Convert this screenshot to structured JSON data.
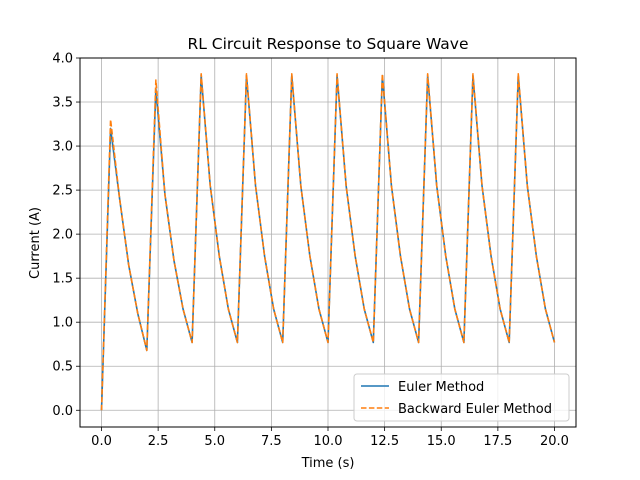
{
  "chart_data": {
    "type": "line",
    "title": "RL Circuit Response to Square Wave",
    "xlabel": "Time (s)",
    "ylabel": "Current (A)",
    "xlim": [
      -0.95,
      20.95
    ],
    "ylim": [
      -0.19,
      4.0
    ],
    "xticks": [
      0.0,
      2.5,
      5.0,
      7.5,
      10.0,
      12.5,
      15.0,
      17.5,
      20.0
    ],
    "xtick_labels": [
      "0.0",
      "2.5",
      "5.0",
      "7.5",
      "10.0",
      "12.5",
      "15.0",
      "17.5",
      "20.0"
    ],
    "yticks": [
      0.0,
      0.5,
      1.0,
      1.5,
      2.0,
      2.5,
      3.0,
      3.5,
      4.0
    ],
    "ytick_labels": [
      "0.0",
      "0.5",
      "1.0",
      "1.5",
      "2.0",
      "2.5",
      "3.0",
      "3.5",
      "4.0"
    ],
    "grid": true,
    "legend_position": "lower-right",
    "series": [
      {
        "name": "Euler Method",
        "color": "#1f77b4",
        "style": "solid",
        "x": [
          0.0,
          0.4,
          0.8,
          1.2,
          1.6,
          2.0,
          2.4,
          2.8,
          3.2,
          3.6,
          4.0,
          4.4,
          4.8,
          5.2,
          5.6,
          6.0,
          6.4,
          6.8,
          7.2,
          7.6,
          8.0,
          8.4,
          8.8,
          9.2,
          9.6,
          10.0,
          10.4,
          10.8,
          11.2,
          11.6,
          12.0,
          12.4,
          12.8,
          13.2,
          13.6,
          14.0,
          14.4,
          14.8,
          15.2,
          15.6,
          16.0,
          16.4,
          16.8,
          17.2,
          17.6,
          18.0,
          18.4,
          18.8,
          19.2,
          19.6,
          20.0
        ],
        "y": [
          0.0,
          3.2,
          2.4,
          1.65,
          1.1,
          0.68,
          3.65,
          2.45,
          1.7,
          1.15,
          0.77,
          3.8,
          2.55,
          1.75,
          1.15,
          0.77,
          3.8,
          2.55,
          1.75,
          1.15,
          0.77,
          3.8,
          2.55,
          1.75,
          1.15,
          0.77,
          3.8,
          2.55,
          1.75,
          1.15,
          0.77,
          3.8,
          2.55,
          1.75,
          1.15,
          0.77,
          3.8,
          2.55,
          1.75,
          1.15,
          0.77,
          3.8,
          2.55,
          1.75,
          1.15,
          0.77,
          3.8,
          2.55,
          1.75,
          1.15,
          0.77
        ]
      },
      {
        "name": "Backward Euler Method",
        "color": "#ff7f0e",
        "style": "dashed",
        "x": [
          0.0,
          0.4,
          0.8,
          1.2,
          1.6,
          2.0,
          2.4,
          2.8,
          3.2,
          3.6,
          4.0,
          4.4,
          4.8,
          5.2,
          5.6,
          6.0,
          6.4,
          6.8,
          7.2,
          7.6,
          8.0,
          8.4,
          8.8,
          9.2,
          9.6,
          10.0,
          10.4,
          10.8,
          11.2,
          11.6,
          12.0,
          12.4,
          12.8,
          13.2,
          13.6,
          14.0,
          14.4,
          14.8,
          15.2,
          15.6,
          16.0,
          16.4,
          16.8,
          17.2,
          17.6,
          18.0,
          18.4,
          18.8,
          19.2,
          19.6,
          20.0
        ],
        "y": [
          0.0,
          3.3,
          2.4,
          1.65,
          1.1,
          0.68,
          3.75,
          2.45,
          1.7,
          1.15,
          0.77,
          3.82,
          2.55,
          1.75,
          1.15,
          0.77,
          3.82,
          2.55,
          1.75,
          1.15,
          0.77,
          3.82,
          2.55,
          1.75,
          1.15,
          0.77,
          3.82,
          2.55,
          1.75,
          1.15,
          0.77,
          3.82,
          2.55,
          1.75,
          1.15,
          0.77,
          3.82,
          2.55,
          1.75,
          1.15,
          0.77,
          3.82,
          2.55,
          1.75,
          1.15,
          0.77,
          3.82,
          2.55,
          1.75,
          1.15,
          0.77
        ]
      }
    ]
  }
}
